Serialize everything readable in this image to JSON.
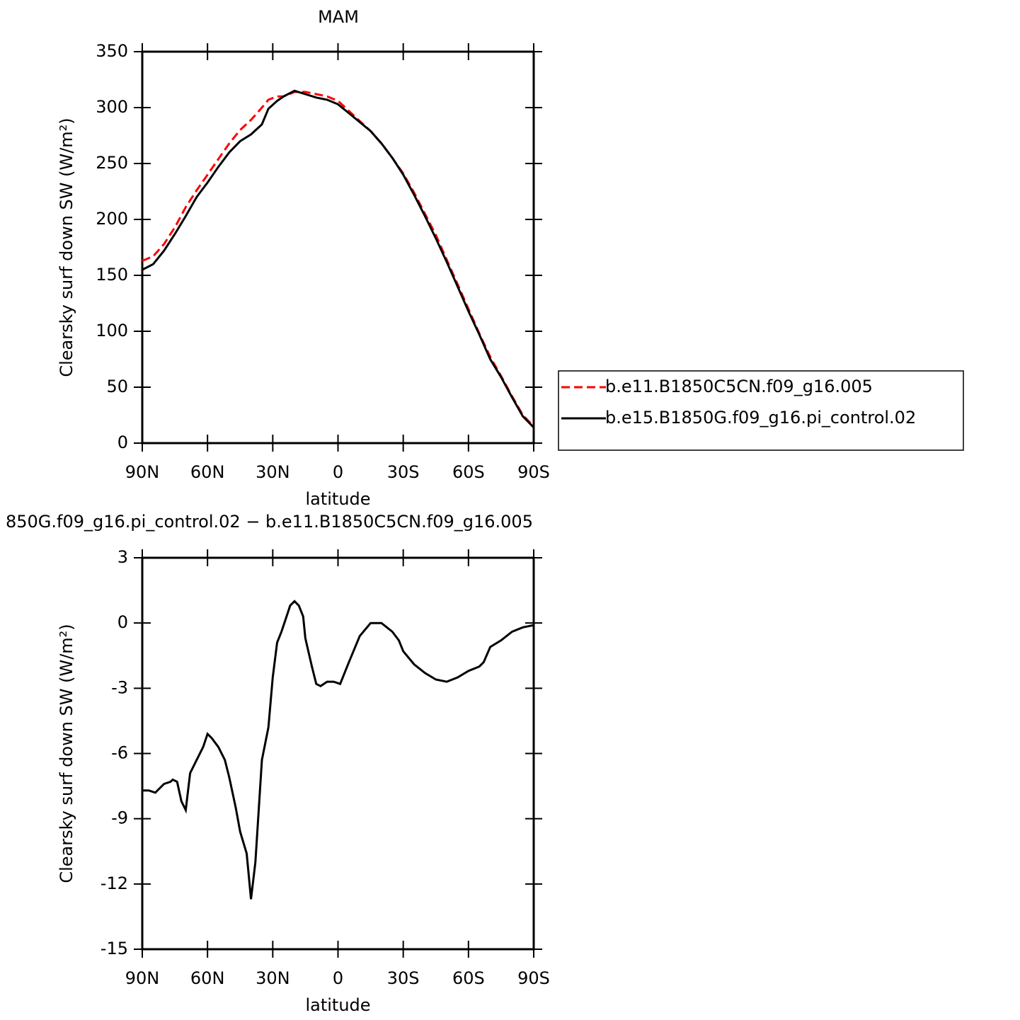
{
  "chart_data": [
    {
      "type": "line",
      "title": "MAM",
      "xlabel": "latitude",
      "ylabel": "Clearsky surf down SW (W/m²)",
      "x": [
        90,
        85,
        80,
        75,
        70,
        65,
        60,
        55,
        50,
        45,
        40,
        35,
        32,
        28,
        25,
        20,
        15,
        10,
        5,
        0,
        -5,
        -10,
        -15,
        -20,
        -25,
        -30,
        -35,
        -40,
        -45,
        -50,
        -55,
        -60,
        -65,
        -70,
        -75,
        -80,
        -85,
        -90
      ],
      "series": [
        {
          "name": "b.e11.B1850C5CN.f09_g16.005",
          "color": "#ff0000",
          "dash": true,
          "values": [
            163,
            167,
            178,
            193,
            211,
            226,
            240,
            254,
            268,
            280,
            289,
            300,
            307,
            310,
            310,
            314,
            314,
            312,
            310,
            306,
            297,
            288,
            279,
            268,
            255,
            241,
            224,
            205,
            186,
            164,
            142,
            120,
            98,
            77,
            60,
            42,
            25,
            15
          ]
        },
        {
          "name": "b.e15.B1850G.f09_g16.pi_control.02",
          "color": "#000000",
          "dash": false,
          "values": [
            155,
            160,
            172,
            187,
            203,
            220,
            233,
            247,
            260,
            270,
            276,
            285,
            299,
            306,
            310,
            315,
            312,
            309,
            307,
            303,
            295,
            287,
            279,
            268,
            255,
            240,
            222,
            203,
            183,
            162,
            140,
            118,
            97,
            75,
            59,
            41,
            24,
            14
          ]
        }
      ],
      "xlim": [
        90,
        -90
      ],
      "xticks": [
        {
          "value": 90,
          "label": "90N"
        },
        {
          "value": 60,
          "label": "60N"
        },
        {
          "value": 30,
          "label": "30N"
        },
        0,
        {
          "value": -30,
          "label": "30S"
        },
        {
          "value": -60,
          "label": "60S"
        },
        {
          "value": -90,
          "label": "90S"
        }
      ],
      "ylim": [
        0,
        350
      ],
      "yticks": [
        0,
        50,
        100,
        150,
        200,
        250,
        300,
        350
      ],
      "legend": "right"
    },
    {
      "type": "line",
      "title": "850G.f09_g16.pi_control.02 − b.e11.B1850C5CN.f09_g16.005",
      "xlabel": "latitude",
      "ylabel": "Clearsky surf down SW (W/m²)",
      "x": [
        90,
        87,
        84,
        80,
        77,
        76,
        74,
        72,
        70,
        68,
        65,
        62,
        60,
        58,
        55,
        52,
        50,
        47,
        45,
        42,
        40,
        38,
        35,
        32,
        30,
        28,
        26,
        24,
        22,
        20,
        18,
        16,
        15,
        12,
        10,
        8,
        5,
        2,
        -1,
        -5,
        -10,
        -15,
        -20,
        -25,
        -28,
        -30,
        -35,
        -40,
        -45,
        -50,
        -55,
        -60,
        -65,
        -67,
        -70,
        -75,
        -80,
        -85,
        -90
      ],
      "series": [
        {
          "color": "#000000",
          "dash": false,
          "values": [
            -7.7,
            -7.7,
            -7.8,
            -7.4,
            -7.3,
            -7.2,
            -7.3,
            -8.2,
            -8.6,
            -6.9,
            -6.3,
            -5.7,
            -5.1,
            -5.3,
            -5.7,
            -6.3,
            -7.1,
            -8.5,
            -9.6,
            -10.6,
            -12.7,
            -11,
            -6.3,
            -4.8,
            -2.5,
            -0.9,
            -0.4,
            0.2,
            0.8,
            1.0,
            0.8,
            0.3,
            -0.7,
            -2.0,
            -2.8,
            -2.9,
            -2.7,
            -2.7,
            -2.8,
            -1.8,
            -0.6,
            0,
            0,
            -0.4,
            -0.8,
            -1.3,
            -1.9,
            -2.3,
            -2.6,
            -2.7,
            -2.5,
            -2.2,
            -2.0,
            -1.8,
            -1.1,
            -0.8,
            -0.4,
            -0.2,
            -0.1
          ]
        }
      ],
      "xlim": [
        90,
        -90
      ],
      "xticks": [
        {
          "value": 90,
          "label": "90N"
        },
        {
          "value": 60,
          "label": "60N"
        },
        {
          "value": 30,
          "label": "30N"
        },
        0,
        {
          "value": -30,
          "label": "30S"
        },
        {
          "value": -60,
          "label": "60S"
        },
        {
          "value": -90,
          "label": "90S"
        }
      ],
      "ylim": [
        -15,
        3
      ],
      "yticks": [
        -15,
        -12,
        -9,
        -6,
        -3,
        0,
        3
      ]
    }
  ]
}
